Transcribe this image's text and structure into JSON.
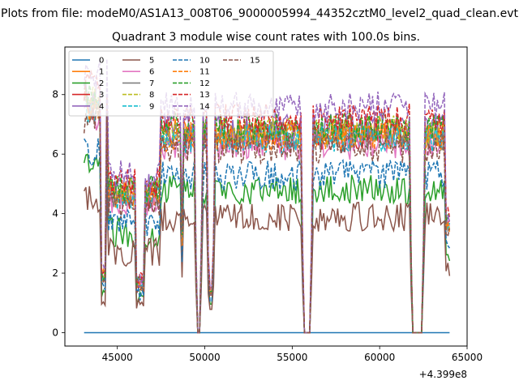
{
  "chart_data": {
    "type": "line",
    "suptitle": "Plots from file: modeM0/AS1A13_008T06_9000005994_44352cztM0_level2_quad_clean.evt",
    "title": "Quadrant 3 module wise count rates with 100.0s bins.",
    "xlabel": "",
    "ylabel": "",
    "x_offset_label": "+4.399e8",
    "xlim": [
      42000,
      65000
    ],
    "ylim": [
      -0.45,
      9.6
    ],
    "x_ticks": [
      45000,
      50000,
      55000,
      60000,
      65000
    ],
    "y_ticks": [
      0,
      2,
      4,
      6,
      8
    ],
    "x_tick_labels": [
      "45000",
      "50000",
      "55000",
      "60000",
      "65000"
    ],
    "y_tick_labels": [
      "0",
      "2",
      "4",
      "6",
      "8"
    ],
    "x_start": 43100,
    "x_end": 64000,
    "bin_s": 100,
    "legend_position": "upper left",
    "legend_columns": 4,
    "gaps": [
      {
        "start": 49550,
        "end": 49700,
        "depth": 0.0
      },
      {
        "start": 50300,
        "end": 50400,
        "depth": 0.2
      },
      {
        "start": 55700,
        "end": 56000,
        "depth": 0.0
      },
      {
        "start": 61900,
        "end": 62400,
        "depth": 0.0
      }
    ],
    "dips": [
      {
        "center": 48700,
        "width": 60,
        "depth": 0.5
      },
      {
        "center": 48750,
        "width": 40,
        "depth": 0.8
      },
      {
        "center": 46300,
        "width": 250,
        "depth": 0.35
      },
      {
        "center": 44200,
        "width": 150,
        "depth": 0.25
      }
    ],
    "series": [
      {
        "name": "0",
        "color": "#1f77b4",
        "style": "solid",
        "flat": true,
        "level": 0.0
      },
      {
        "name": "1",
        "color": "#ff7f0e",
        "style": "solid",
        "level": 6.7
      },
      {
        "name": "2",
        "color": "#2ca02c",
        "style": "solid",
        "level": 4.8
      },
      {
        "name": "3",
        "color": "#d62728",
        "style": "solid",
        "level": 6.6
      },
      {
        "name": "4",
        "color": "#9467bd",
        "style": "solid",
        "level": 6.9
      },
      {
        "name": "5",
        "color": "#8c564b",
        "style": "solid",
        "level": 3.9
      },
      {
        "name": "6",
        "color": "#e377c2",
        "style": "solid",
        "level": 6.3
      },
      {
        "name": "7",
        "color": "#7f7f7f",
        "style": "solid",
        "level": 6.6
      },
      {
        "name": "8",
        "color": "#bcbd22",
        "style": "dashed",
        "level": 6.8
      },
      {
        "name": "9",
        "color": "#17becf",
        "style": "dashed",
        "level": 6.5
      },
      {
        "name": "10",
        "color": "#1f77b4",
        "style": "dashed",
        "level": 5.3
      },
      {
        "name": "11",
        "color": "#ff7f0e",
        "style": "dashed",
        "level": 6.6
      },
      {
        "name": "12",
        "color": "#2ca02c",
        "style": "dashed",
        "level": 6.9
      },
      {
        "name": "13",
        "color": "#d62728",
        "style": "dashed",
        "level": 7.2
      },
      {
        "name": "14",
        "color": "#9467bd",
        "style": "dashed",
        "level": 7.6
      },
      {
        "name": "15",
        "color": "#8c564b",
        "style": "dashed",
        "level": 6.2
      }
    ]
  }
}
